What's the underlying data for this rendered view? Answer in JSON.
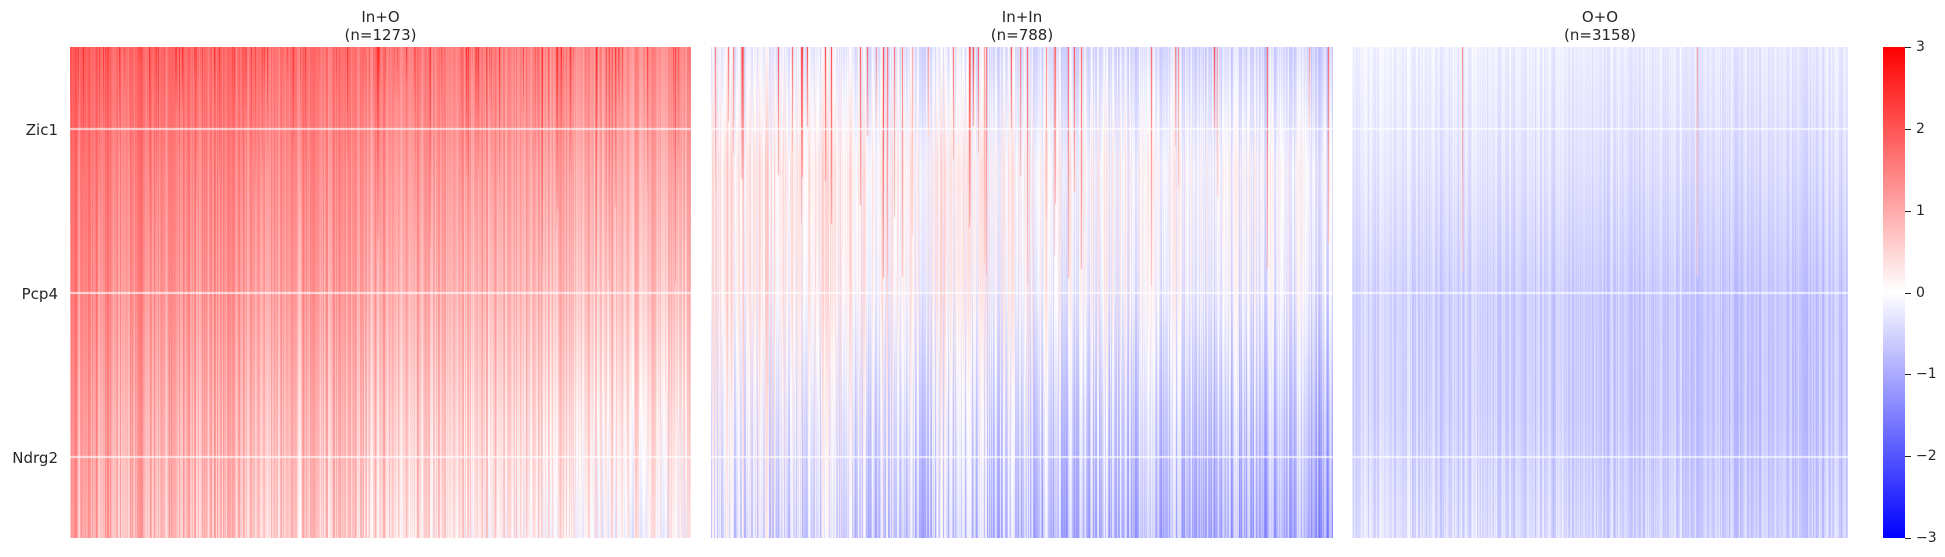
{
  "chart_data": {
    "type": "heatmap",
    "panels": [
      {
        "title": "In+O",
        "subtitle": "(n=1273)",
        "n": 1273,
        "mean_profile": [
          1.6,
          1.2,
          0.9,
          0.5,
          0.2
        ],
        "sort_gradient": [
          1.3,
          -0.4
        ],
        "spike_rate": 0.35,
        "noise": 0.6
      },
      {
        "title": "In+In",
        "subtitle": "(n=788)",
        "n": 788,
        "mean_profile": [
          -0.3,
          0.2,
          0.1,
          -0.3,
          -0.6
        ],
        "sort_gradient": [
          0.4,
          -0.8
        ],
        "spike_rate": 0.12,
        "noise": 0.7
      },
      {
        "title": "O+O",
        "subtitle": "(n=3158)",
        "n": 3158,
        "mean_profile": [
          -0.2,
          -0.35,
          -0.6,
          -0.6,
          -0.45
        ],
        "sort_gradient": [
          0.1,
          -0.3
        ],
        "spike_rate": 0.01,
        "noise": 0.35
      }
    ],
    "genes": [
      "Zic1",
      "Pcp4",
      "Ndrg2"
    ],
    "colorbar": {
      "min": -3,
      "max": 3,
      "ticks": [
        "3",
        "2",
        "1",
        "0",
        "−1",
        "−2",
        "−3"
      ],
      "tick_values": [
        3,
        2,
        1,
        0,
        -1,
        -2,
        -3
      ]
    },
    "colormap": {
      "low": "#0000ff",
      "mid": "#ffffff",
      "high": "#ff0000"
    },
    "grid": true
  }
}
